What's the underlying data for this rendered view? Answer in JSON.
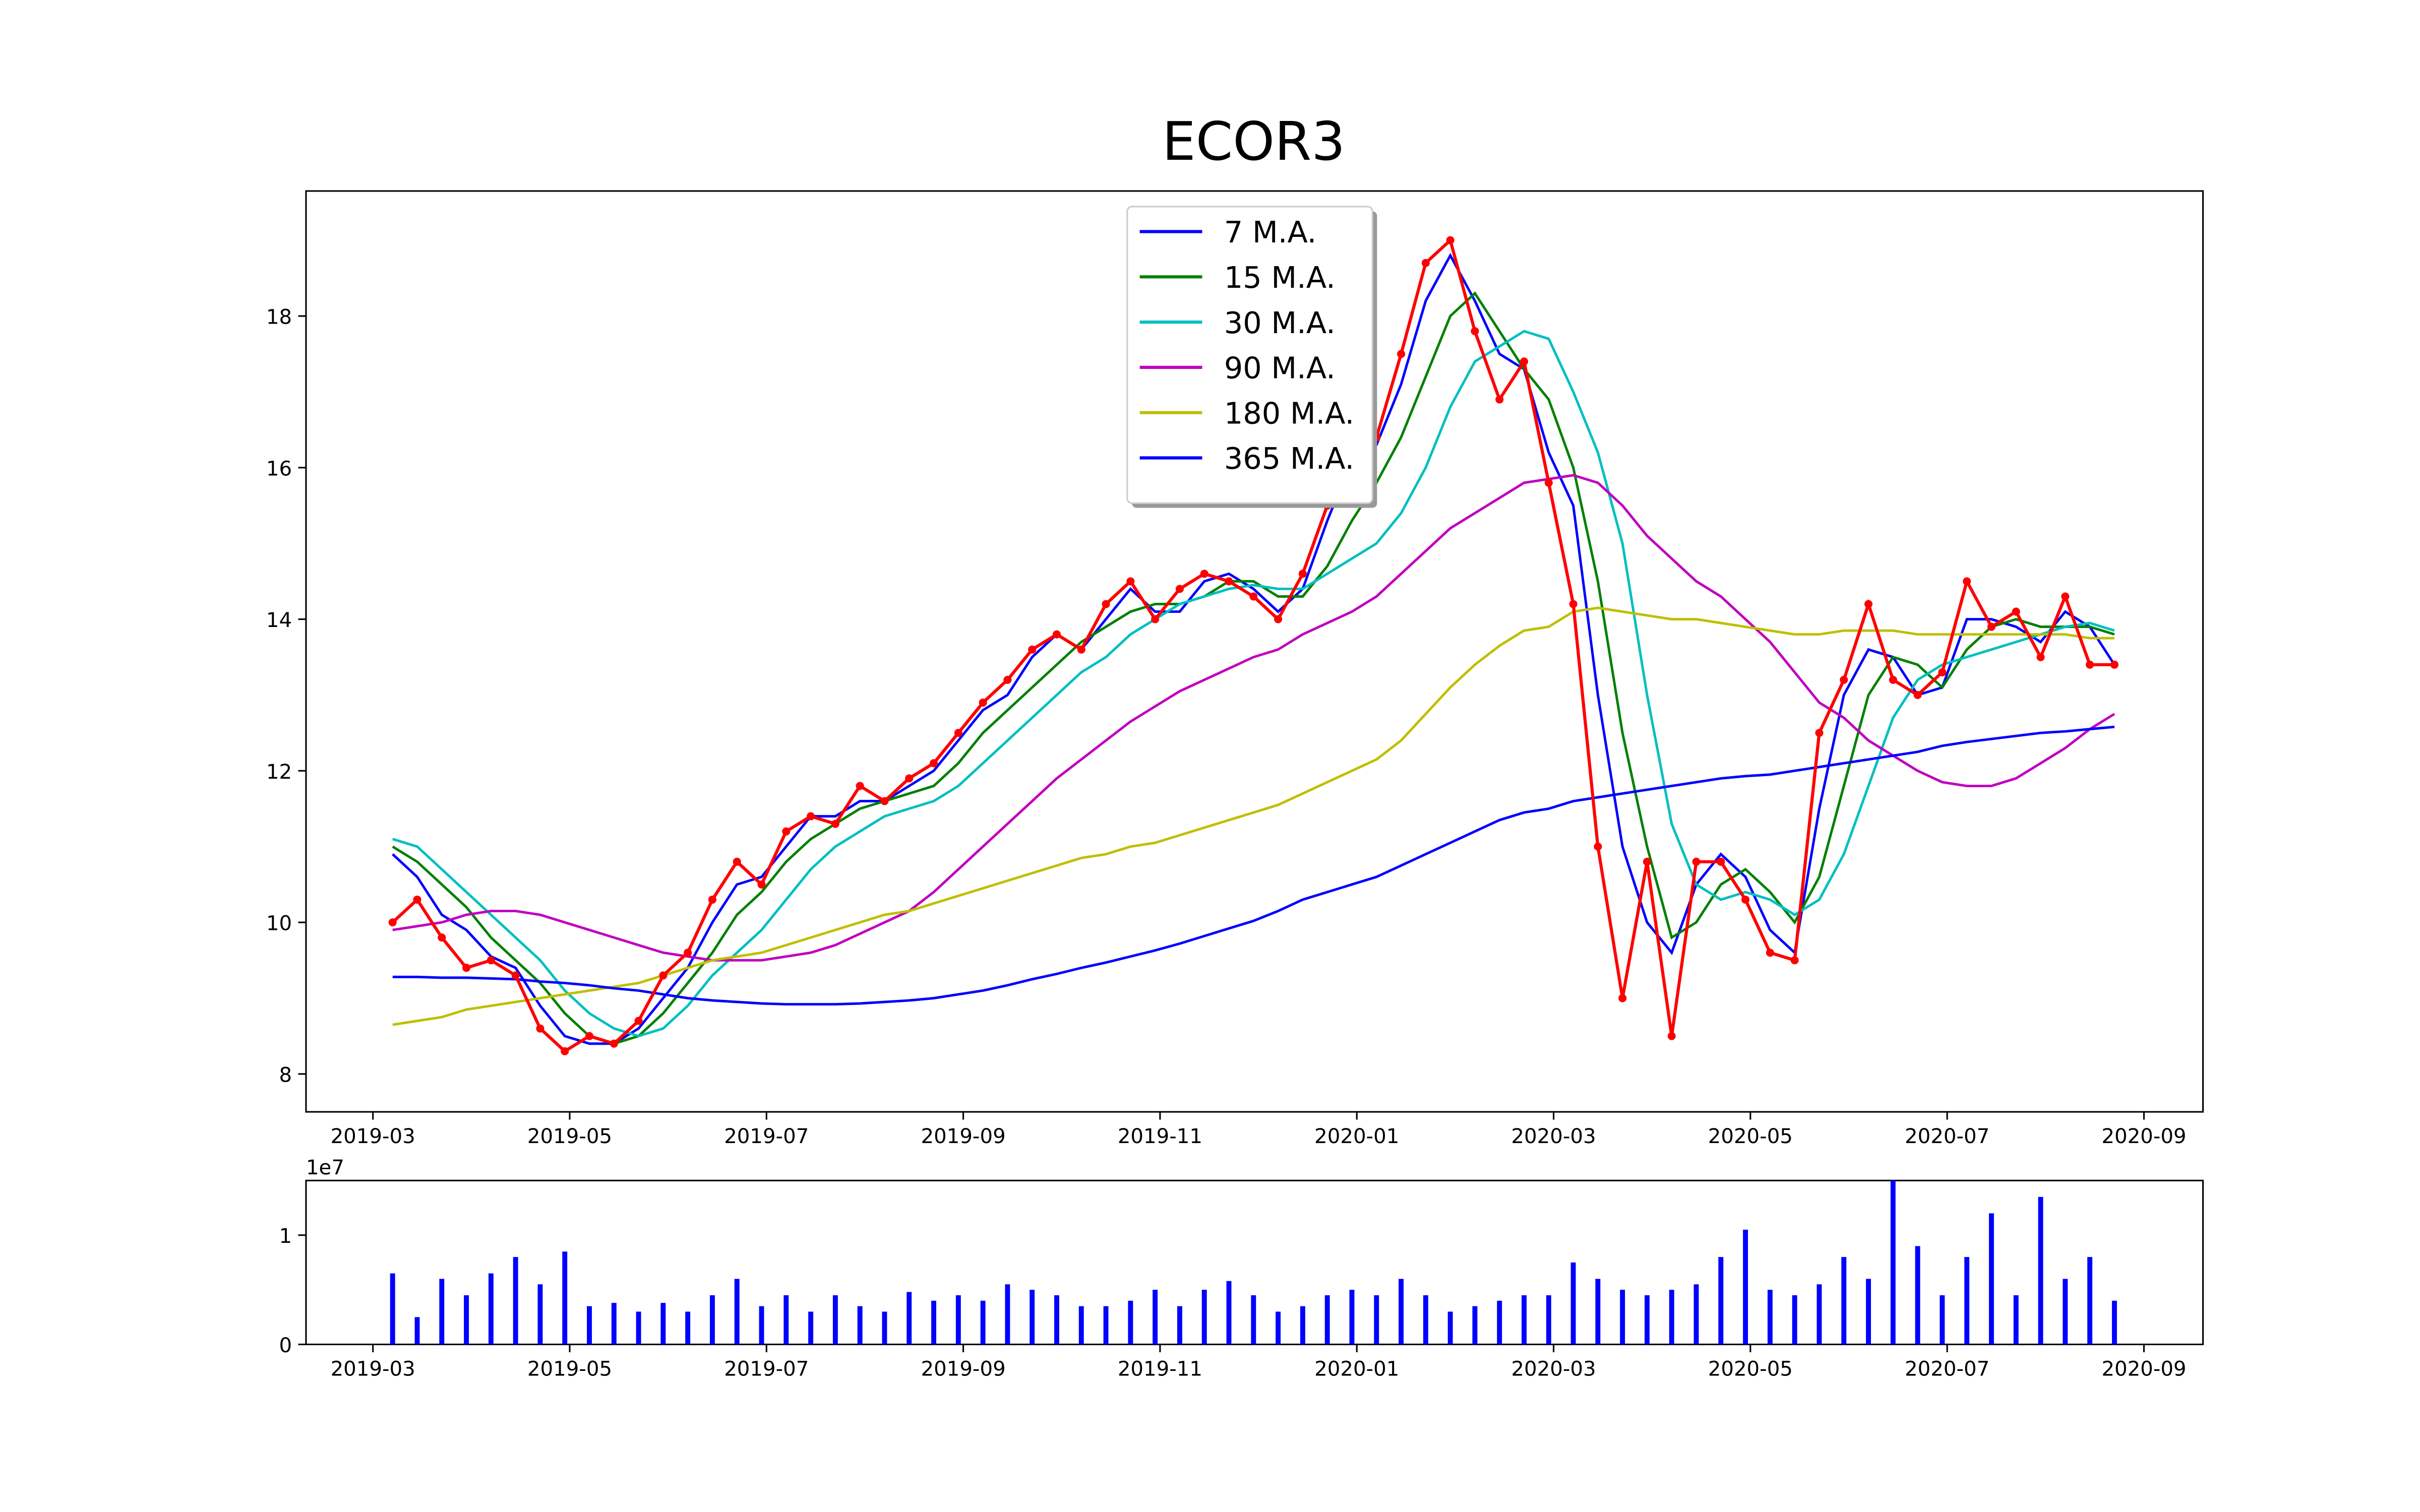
{
  "chart_data": [
    {
      "type": "line",
      "title": "ECOR3",
      "x": [
        0.2,
        0.45,
        0.7,
        0.95,
        1.2,
        1.45,
        1.7,
        1.95,
        2.2,
        2.45,
        2.7,
        2.95,
        3.2,
        3.45,
        3.7,
        3.95,
        4.2,
        4.45,
        4.7,
        4.95,
        5.2,
        5.45,
        5.7,
        5.95,
        6.2,
        6.45,
        6.7,
        6.95,
        7.2,
        7.45,
        7.7,
        7.95,
        8.2,
        8.45,
        8.7,
        8.95,
        9.2,
        9.45,
        9.7,
        9.95,
        10.2,
        10.45,
        10.7,
        10.95,
        11.2,
        11.45,
        11.7,
        11.95,
        12.2,
        12.45,
        12.7,
        12.95,
        13.2,
        13.45,
        13.7,
        13.95,
        14.2,
        14.45,
        14.7,
        14.95,
        15.2,
        15.45,
        15.7,
        15.95,
        16.2,
        16.45,
        16.7,
        16.95,
        17.2,
        17.45,
        17.7
      ],
      "xlim": [
        -0.68,
        18.6
      ],
      "xticks": [
        {
          "value": 0,
          "label": "2019-03"
        },
        {
          "value": 2,
          "label": "2019-05"
        },
        {
          "value": 4,
          "label": "2019-07"
        },
        {
          "value": 6,
          "label": "2019-09"
        },
        {
          "value": 8,
          "label": "2019-11"
        },
        {
          "value": 10,
          "label": "2020-01"
        },
        {
          "value": 12,
          "label": "2020-03"
        },
        {
          "value": 14,
          "label": "2020-05"
        },
        {
          "value": 16,
          "label": "2020-07"
        },
        {
          "value": 18,
          "label": "2020-09"
        }
      ],
      "ylim": [
        7.5,
        19.65
      ],
      "yticks": [
        8,
        10,
        12,
        14,
        16,
        18
      ],
      "price": {
        "color": "#ff0000",
        "marker": "o",
        "values": [
          10.0,
          10.3,
          9.8,
          9.4,
          9.5,
          9.3,
          8.6,
          8.3,
          8.5,
          8.4,
          8.7,
          9.3,
          9.6,
          10.3,
          10.8,
          10.5,
          11.2,
          11.4,
          11.3,
          11.8,
          11.6,
          11.9,
          12.1,
          12.5,
          12.9,
          13.2,
          13.6,
          13.8,
          13.6,
          14.2,
          14.5,
          14.0,
          14.4,
          14.6,
          14.5,
          14.3,
          14.0,
          14.6,
          15.5,
          16.3,
          16.4,
          17.5,
          18.7,
          19.0,
          17.8,
          16.9,
          17.4,
          15.8,
          14.2,
          11.0,
          9.0,
          10.8,
          8.5,
          10.8,
          10.8,
          10.3,
          9.6,
          9.5,
          12.5,
          13.2,
          14.2,
          13.2,
          13.0,
          13.3,
          14.5,
          13.9,
          14.1,
          13.5,
          14.3,
          13.4,
          13.4
        ]
      },
      "legend": "upper center",
      "series": [
        {
          "name": "7 M.A.",
          "color": "#0000ff",
          "values": [
            10.9,
            10.6,
            10.1,
            9.9,
            9.55,
            9.4,
            8.9,
            8.5,
            8.4,
            8.4,
            8.6,
            9.0,
            9.4,
            10.0,
            10.5,
            10.6,
            11.0,
            11.4,
            11.4,
            11.6,
            11.6,
            11.8,
            12.0,
            12.4,
            12.8,
            13.0,
            13.5,
            13.8,
            13.6,
            14.0,
            14.4,
            14.1,
            14.1,
            14.5,
            14.6,
            14.4,
            14.1,
            14.4,
            15.3,
            16.1,
            16.3,
            17.1,
            18.2,
            18.8,
            18.2,
            17.5,
            17.3,
            16.2,
            15.5,
            13.0,
            11.0,
            10.0,
            9.6,
            10.5,
            10.9,
            10.6,
            9.9,
            9.6,
            11.5,
            13.0,
            13.6,
            13.5,
            13.0,
            13.1,
            14.0,
            14.0,
            13.9,
            13.7,
            14.1,
            13.9,
            13.4
          ]
        },
        {
          "name": "15 M.A.",
          "color": "#008000",
          "values": [
            11.0,
            10.8,
            10.5,
            10.2,
            9.8,
            9.5,
            9.2,
            8.8,
            8.5,
            8.4,
            8.5,
            8.8,
            9.2,
            9.6,
            10.1,
            10.4,
            10.8,
            11.1,
            11.3,
            11.5,
            11.6,
            11.7,
            11.8,
            12.1,
            12.5,
            12.8,
            13.1,
            13.4,
            13.7,
            13.9,
            14.1,
            14.2,
            14.2,
            14.3,
            14.5,
            14.5,
            14.3,
            14.3,
            14.7,
            15.3,
            15.8,
            16.4,
            17.2,
            18.0,
            18.3,
            17.8,
            17.3,
            16.9,
            16.0,
            14.5,
            12.5,
            11.0,
            9.8,
            10.0,
            10.5,
            10.7,
            10.4,
            10.0,
            10.6,
            11.8,
            13.0,
            13.5,
            13.4,
            13.1,
            13.6,
            13.9,
            14.0,
            13.9,
            13.9,
            13.9,
            13.8
          ]
        },
        {
          "name": "30 M.A.",
          "color": "#00bfbf",
          "values": [
            11.1,
            11.0,
            10.7,
            10.4,
            10.1,
            9.8,
            9.5,
            9.1,
            8.8,
            8.6,
            8.5,
            8.6,
            8.9,
            9.3,
            9.6,
            9.9,
            10.3,
            10.7,
            11.0,
            11.2,
            11.4,
            11.5,
            11.6,
            11.8,
            12.1,
            12.4,
            12.7,
            13.0,
            13.3,
            13.5,
            13.8,
            14.0,
            14.2,
            14.3,
            14.4,
            14.45,
            14.4,
            14.4,
            14.6,
            14.8,
            15.0,
            15.4,
            16.0,
            16.8,
            17.4,
            17.6,
            17.8,
            17.7,
            17.0,
            16.2,
            15.0,
            13.0,
            11.3,
            10.5,
            10.3,
            10.4,
            10.3,
            10.1,
            10.3,
            10.9,
            11.8,
            12.7,
            13.2,
            13.4,
            13.5,
            13.6,
            13.7,
            13.8,
            13.9,
            13.95,
            13.85
          ]
        },
        {
          "name": "90 M.A.",
          "color": "#bf00bf",
          "values": [
            9.9,
            9.95,
            10.0,
            10.1,
            10.15,
            10.15,
            10.1,
            10.0,
            9.9,
            9.8,
            9.7,
            9.6,
            9.55,
            9.5,
            9.5,
            9.5,
            9.55,
            9.6,
            9.7,
            9.85,
            10.0,
            10.15,
            10.4,
            10.7,
            11.0,
            11.3,
            11.6,
            11.9,
            12.15,
            12.4,
            12.65,
            12.85,
            13.05,
            13.2,
            13.35,
            13.5,
            13.6,
            13.8,
            13.95,
            14.1,
            14.3,
            14.6,
            14.9,
            15.2,
            15.4,
            15.6,
            15.8,
            15.85,
            15.9,
            15.8,
            15.5,
            15.1,
            14.8,
            14.5,
            14.3,
            14.0,
            13.7,
            13.3,
            12.9,
            12.7,
            12.4,
            12.2,
            12.0,
            11.85,
            11.8,
            11.8,
            11.9,
            12.1,
            12.3,
            12.55,
            12.75
          ]
        },
        {
          "name": "180 M.A.",
          "color": "#bfbf00",
          "values": [
            8.65,
            8.7,
            8.75,
            8.85,
            8.9,
            8.95,
            9.0,
            9.05,
            9.1,
            9.15,
            9.2,
            9.3,
            9.4,
            9.5,
            9.55,
            9.6,
            9.7,
            9.8,
            9.9,
            10.0,
            10.1,
            10.15,
            10.25,
            10.35,
            10.45,
            10.55,
            10.65,
            10.75,
            10.85,
            10.9,
            11.0,
            11.05,
            11.15,
            11.25,
            11.35,
            11.45,
            11.55,
            11.7,
            11.85,
            12.0,
            12.15,
            12.4,
            12.75,
            13.1,
            13.4,
            13.65,
            13.85,
            13.9,
            14.1,
            14.15,
            14.1,
            14.05,
            14.0,
            14.0,
            13.95,
            13.9,
            13.85,
            13.8,
            13.8,
            13.85,
            13.85,
            13.85,
            13.8,
            13.8,
            13.8,
            13.8,
            13.8,
            13.8,
            13.8,
            13.75,
            13.75
          ]
        },
        {
          "name": "365 M.A.",
          "color": "#0000ff",
          "values": [
            9.28,
            9.28,
            9.27,
            9.27,
            9.26,
            9.25,
            9.22,
            9.2,
            9.17,
            9.13,
            9.1,
            9.05,
            9.0,
            8.97,
            8.95,
            8.93,
            8.92,
            8.92,
            8.92,
            8.93,
            8.95,
            8.97,
            9.0,
            9.05,
            9.1,
            9.17,
            9.25,
            9.32,
            9.4,
            9.47,
            9.55,
            9.63,
            9.72,
            9.82,
            9.92,
            10.02,
            10.15,
            10.3,
            10.4,
            10.5,
            10.6,
            10.75,
            10.9,
            11.05,
            11.2,
            11.35,
            11.45,
            11.5,
            11.6,
            11.65,
            11.7,
            11.75,
            11.8,
            11.85,
            11.9,
            11.93,
            11.95,
            12.0,
            12.05,
            12.1,
            12.15,
            12.2,
            12.25,
            12.33,
            12.38,
            12.42,
            12.46,
            12.5,
            12.52,
            12.55,
            12.58
          ]
        }
      ]
    },
    {
      "type": "bar",
      "x": [
        0.2,
        0.45,
        0.7,
        0.95,
        1.2,
        1.45,
        1.7,
        1.95,
        2.2,
        2.45,
        2.7,
        2.95,
        3.2,
        3.45,
        3.7,
        3.95,
        4.2,
        4.45,
        4.7,
        4.95,
        5.2,
        5.45,
        5.7,
        5.95,
        6.2,
        6.45,
        6.7,
        6.95,
        7.2,
        7.45,
        7.7,
        7.95,
        8.2,
        8.45,
        8.7,
        8.95,
        9.2,
        9.45,
        9.7,
        9.95,
        10.2,
        10.45,
        10.7,
        10.95,
        11.2,
        11.45,
        11.7,
        11.95,
        12.2,
        12.45,
        12.7,
        12.95,
        13.2,
        13.45,
        13.7,
        13.95,
        14.2,
        14.45,
        14.7,
        14.95,
        15.2,
        15.45,
        15.7,
        15.95,
        16.2,
        16.45,
        16.7,
        16.95,
        17.2,
        17.45,
        17.7
      ],
      "values": [
        0.65,
        0.25,
        0.6,
        0.45,
        0.65,
        0.8,
        0.55,
        0.85,
        0.35,
        0.38,
        0.3,
        0.38,
        0.3,
        0.45,
        0.6,
        0.35,
        0.45,
        0.3,
        0.45,
        0.35,
        0.3,
        0.48,
        0.4,
        0.45,
        0.4,
        0.55,
        0.5,
        0.45,
        0.35,
        0.35,
        0.4,
        0.5,
        0.35,
        0.5,
        0.58,
        0.45,
        0.3,
        0.35,
        0.45,
        0.5,
        0.45,
        0.6,
        0.45,
        0.3,
        0.35,
        0.4,
        0.45,
        0.45,
        0.75,
        0.6,
        0.5,
        0.45,
        0.5,
        0.55,
        0.8,
        1.05,
        0.5,
        0.45,
        0.55,
        0.8,
        0.6,
        1.5,
        0.9,
        0.45,
        0.8,
        1.2,
        0.45,
        1.35,
        0.6,
        0.8,
        0.4
      ],
      "color": "#0000ff",
      "xlim": [
        -0.68,
        18.6
      ],
      "xticks": [
        {
          "value": 0,
          "label": "2019-03"
        },
        {
          "value": 2,
          "label": "2019-05"
        },
        {
          "value": 4,
          "label": "2019-07"
        },
        {
          "value": 6,
          "label": "2019-09"
        },
        {
          "value": 8,
          "label": "2019-11"
        },
        {
          "value": 10,
          "label": "2020-01"
        },
        {
          "value": 12,
          "label": "2020-03"
        },
        {
          "value": 14,
          "label": "2020-05"
        },
        {
          "value": 16,
          "label": "2020-07"
        },
        {
          "value": 18,
          "label": "2020-09"
        }
      ],
      "ylim": [
        0,
        1.5
      ],
      "yticks": [
        0,
        1
      ],
      "offset_text": "1e7"
    }
  ]
}
